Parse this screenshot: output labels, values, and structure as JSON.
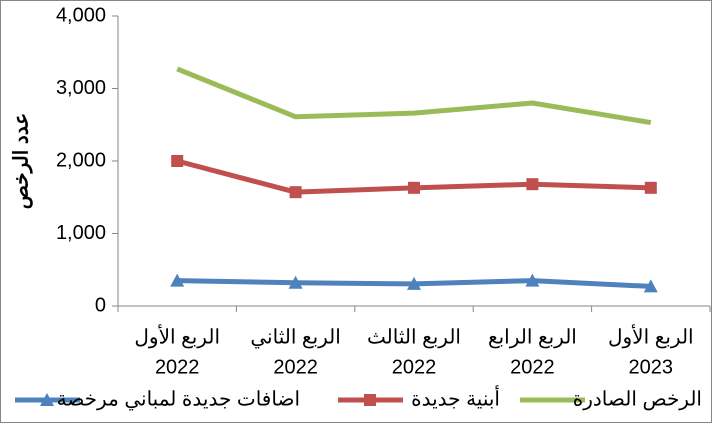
{
  "chart_data": {
    "type": "line",
    "y_label": "عدد الرخص",
    "categories": [
      [
        "الربع الأول",
        "2022"
      ],
      [
        "الربع الثاني",
        "2022"
      ],
      [
        "الربع الثالث",
        "2022"
      ],
      [
        "الربع الرابع",
        "2022"
      ],
      [
        "الربع الأول",
        "2023"
      ]
    ],
    "series": [
      {
        "name": "اضافات جديدة لمباني مرخصة",
        "color": "#4f81bd",
        "marker": "triangle",
        "values": [
          350,
          320,
          305,
          350,
          270
        ]
      },
      {
        "name": "أبنية جديدة",
        "color": "#c0504d",
        "marker": "square",
        "values": [
          2000,
          1570,
          1630,
          1680,
          1630
        ]
      },
      {
        "name": "الرخص الصادرة",
        "color": "#9bbb59",
        "marker": "none",
        "values": [
          3270,
          2610,
          2660,
          2800,
          2530
        ]
      }
    ],
    "ylim": [
      0,
      4000
    ],
    "yticks": [
      0,
      {
        "value": 1000,
        "label": "1,000"
      },
      {
        "value": 2000,
        "label": "2,000"
      },
      {
        "value": 3000,
        "label": "3,000"
      },
      {
        "value": 4000,
        "label": "4,000"
      }
    ],
    "grid": false,
    "legend": "bottom"
  }
}
